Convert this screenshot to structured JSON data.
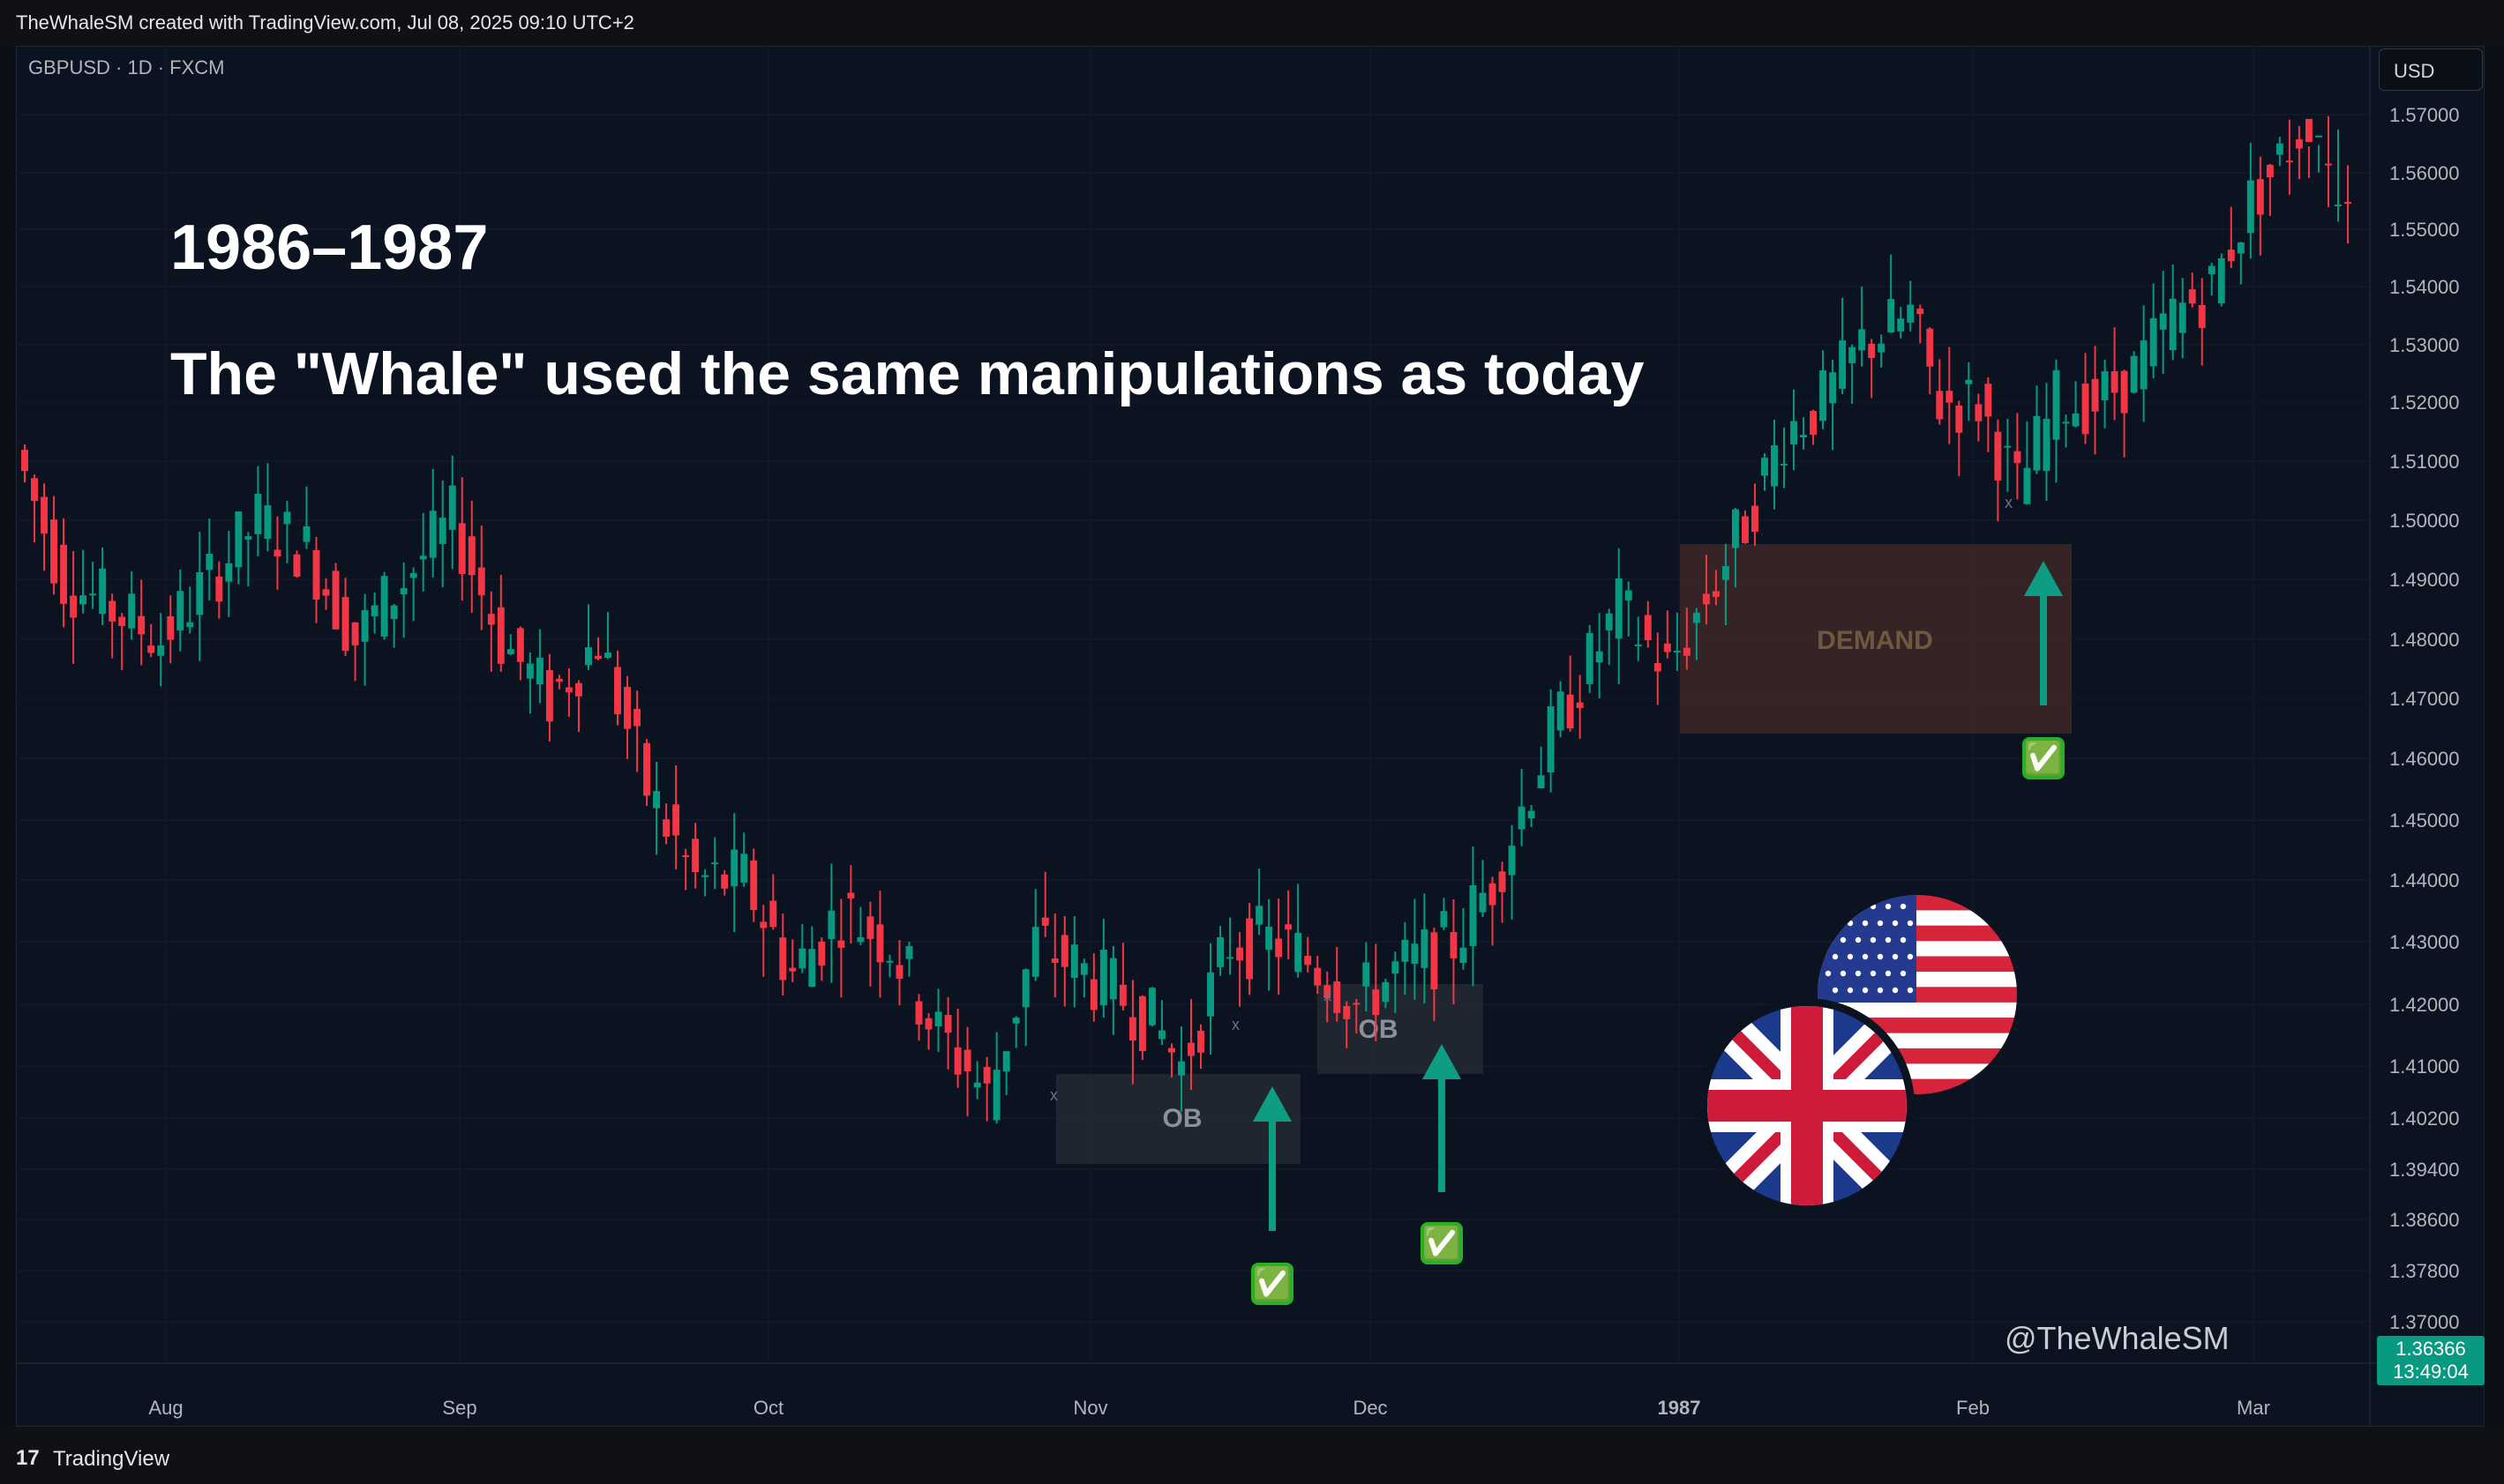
{
  "header": {
    "credit": "TheWhaleSM created with TradingView.com, Jul 08, 2025 09:10 UTC+2"
  },
  "symbol": {
    "label": "GBPUSD · 1D · FXCM"
  },
  "currency_button": "USD",
  "headline": {
    "years": "1986–1987",
    "text": "The \"Whale\" used the same manipulations as today"
  },
  "watermark": "@TheWhaleSM",
  "footer": {
    "logo_glyph": "17",
    "brand": "TradingView"
  },
  "last_price": {
    "value": "1.36366",
    "countdown": "13:49:04"
  },
  "annotations": [
    {
      "label": "OB",
      "kind": "order-block"
    },
    {
      "label": "OB",
      "kind": "order-block"
    },
    {
      "label": "DEMAND",
      "kind": "demand-zone"
    }
  ],
  "check_marks": [
    "✅",
    "✅",
    "✅"
  ],
  "colors": {
    "up": "#089981",
    "down": "#f23645",
    "background": "#0b1220",
    "arrow": "#0e9c82",
    "demand": "#3a2626",
    "ob": "#252a33"
  },
  "chart_data": {
    "type": "candlestick",
    "ylim": [
      1.364,
      1.58
    ],
    "y_ticks": [
      "1.57000",
      "1.56000",
      "1.55000",
      "1.54000",
      "1.53000",
      "1.52000",
      "1.51000",
      "1.50000",
      "1.49000",
      "1.48000",
      "1.47000",
      "1.46000",
      "1.45000",
      "1.44000",
      "1.43000",
      "1.42000",
      "1.41000",
      "1.40200",
      "1.39400",
      "1.38600",
      "1.37800",
      "1.37000"
    ],
    "x_labels": [
      "Aug",
      "Sep",
      "Oct",
      "Nov",
      "Dec",
      "1987",
      "Feb",
      "Mar"
    ],
    "waypoints": [
      [
        0,
        1.512
      ],
      [
        5,
        1.49
      ],
      [
        10,
        1.485
      ],
      [
        15,
        1.48
      ],
      [
        20,
        1.49
      ],
      [
        25,
        1.5
      ],
      [
        30,
        1.495
      ],
      [
        35,
        1.48
      ],
      [
        40,
        1.49
      ],
      [
        45,
        1.5
      ],
      [
        50,
        1.48
      ],
      [
        55,
        1.47
      ],
      [
        60,
        1.48
      ],
      [
        65,
        1.455
      ],
      [
        70,
        1.44
      ],
      [
        75,
        1.44
      ],
      [
        80,
        1.425
      ],
      [
        85,
        1.435
      ],
      [
        90,
        1.43
      ],
      [
        95,
        1.415
      ],
      [
        98,
        1.41
      ],
      [
        100,
        1.405
      ],
      [
        105,
        1.43
      ],
      [
        110,
        1.425
      ],
      [
        115,
        1.42
      ],
      [
        118,
        1.415
      ],
      [
        120,
        1.41
      ],
      [
        125,
        1.43
      ],
      [
        130,
        1.43
      ],
      [
        135,
        1.425
      ],
      [
        138,
        1.42
      ],
      [
        142,
        1.425
      ],
      [
        148,
        1.43
      ],
      [
        152,
        1.44
      ],
      [
        157,
        1.46
      ],
      [
        160,
        1.47
      ],
      [
        165,
        1.485
      ],
      [
        170,
        1.475
      ],
      [
        175,
        1.49
      ],
      [
        178,
        1.5
      ],
      [
        182,
        1.515
      ],
      [
        186,
        1.52
      ],
      [
        190,
        1.53
      ],
      [
        195,
        1.535
      ],
      [
        198,
        1.52
      ],
      [
        202,
        1.52
      ],
      [
        206,
        1.505
      ],
      [
        210,
        1.52
      ],
      [
        214,
        1.52
      ],
      [
        218,
        1.525
      ],
      [
        222,
        1.535
      ],
      [
        226,
        1.54
      ],
      [
        230,
        1.555
      ],
      [
        233,
        1.562
      ],
      [
        236,
        1.57
      ],
      [
        239,
        1.585
      ]
    ]
  }
}
